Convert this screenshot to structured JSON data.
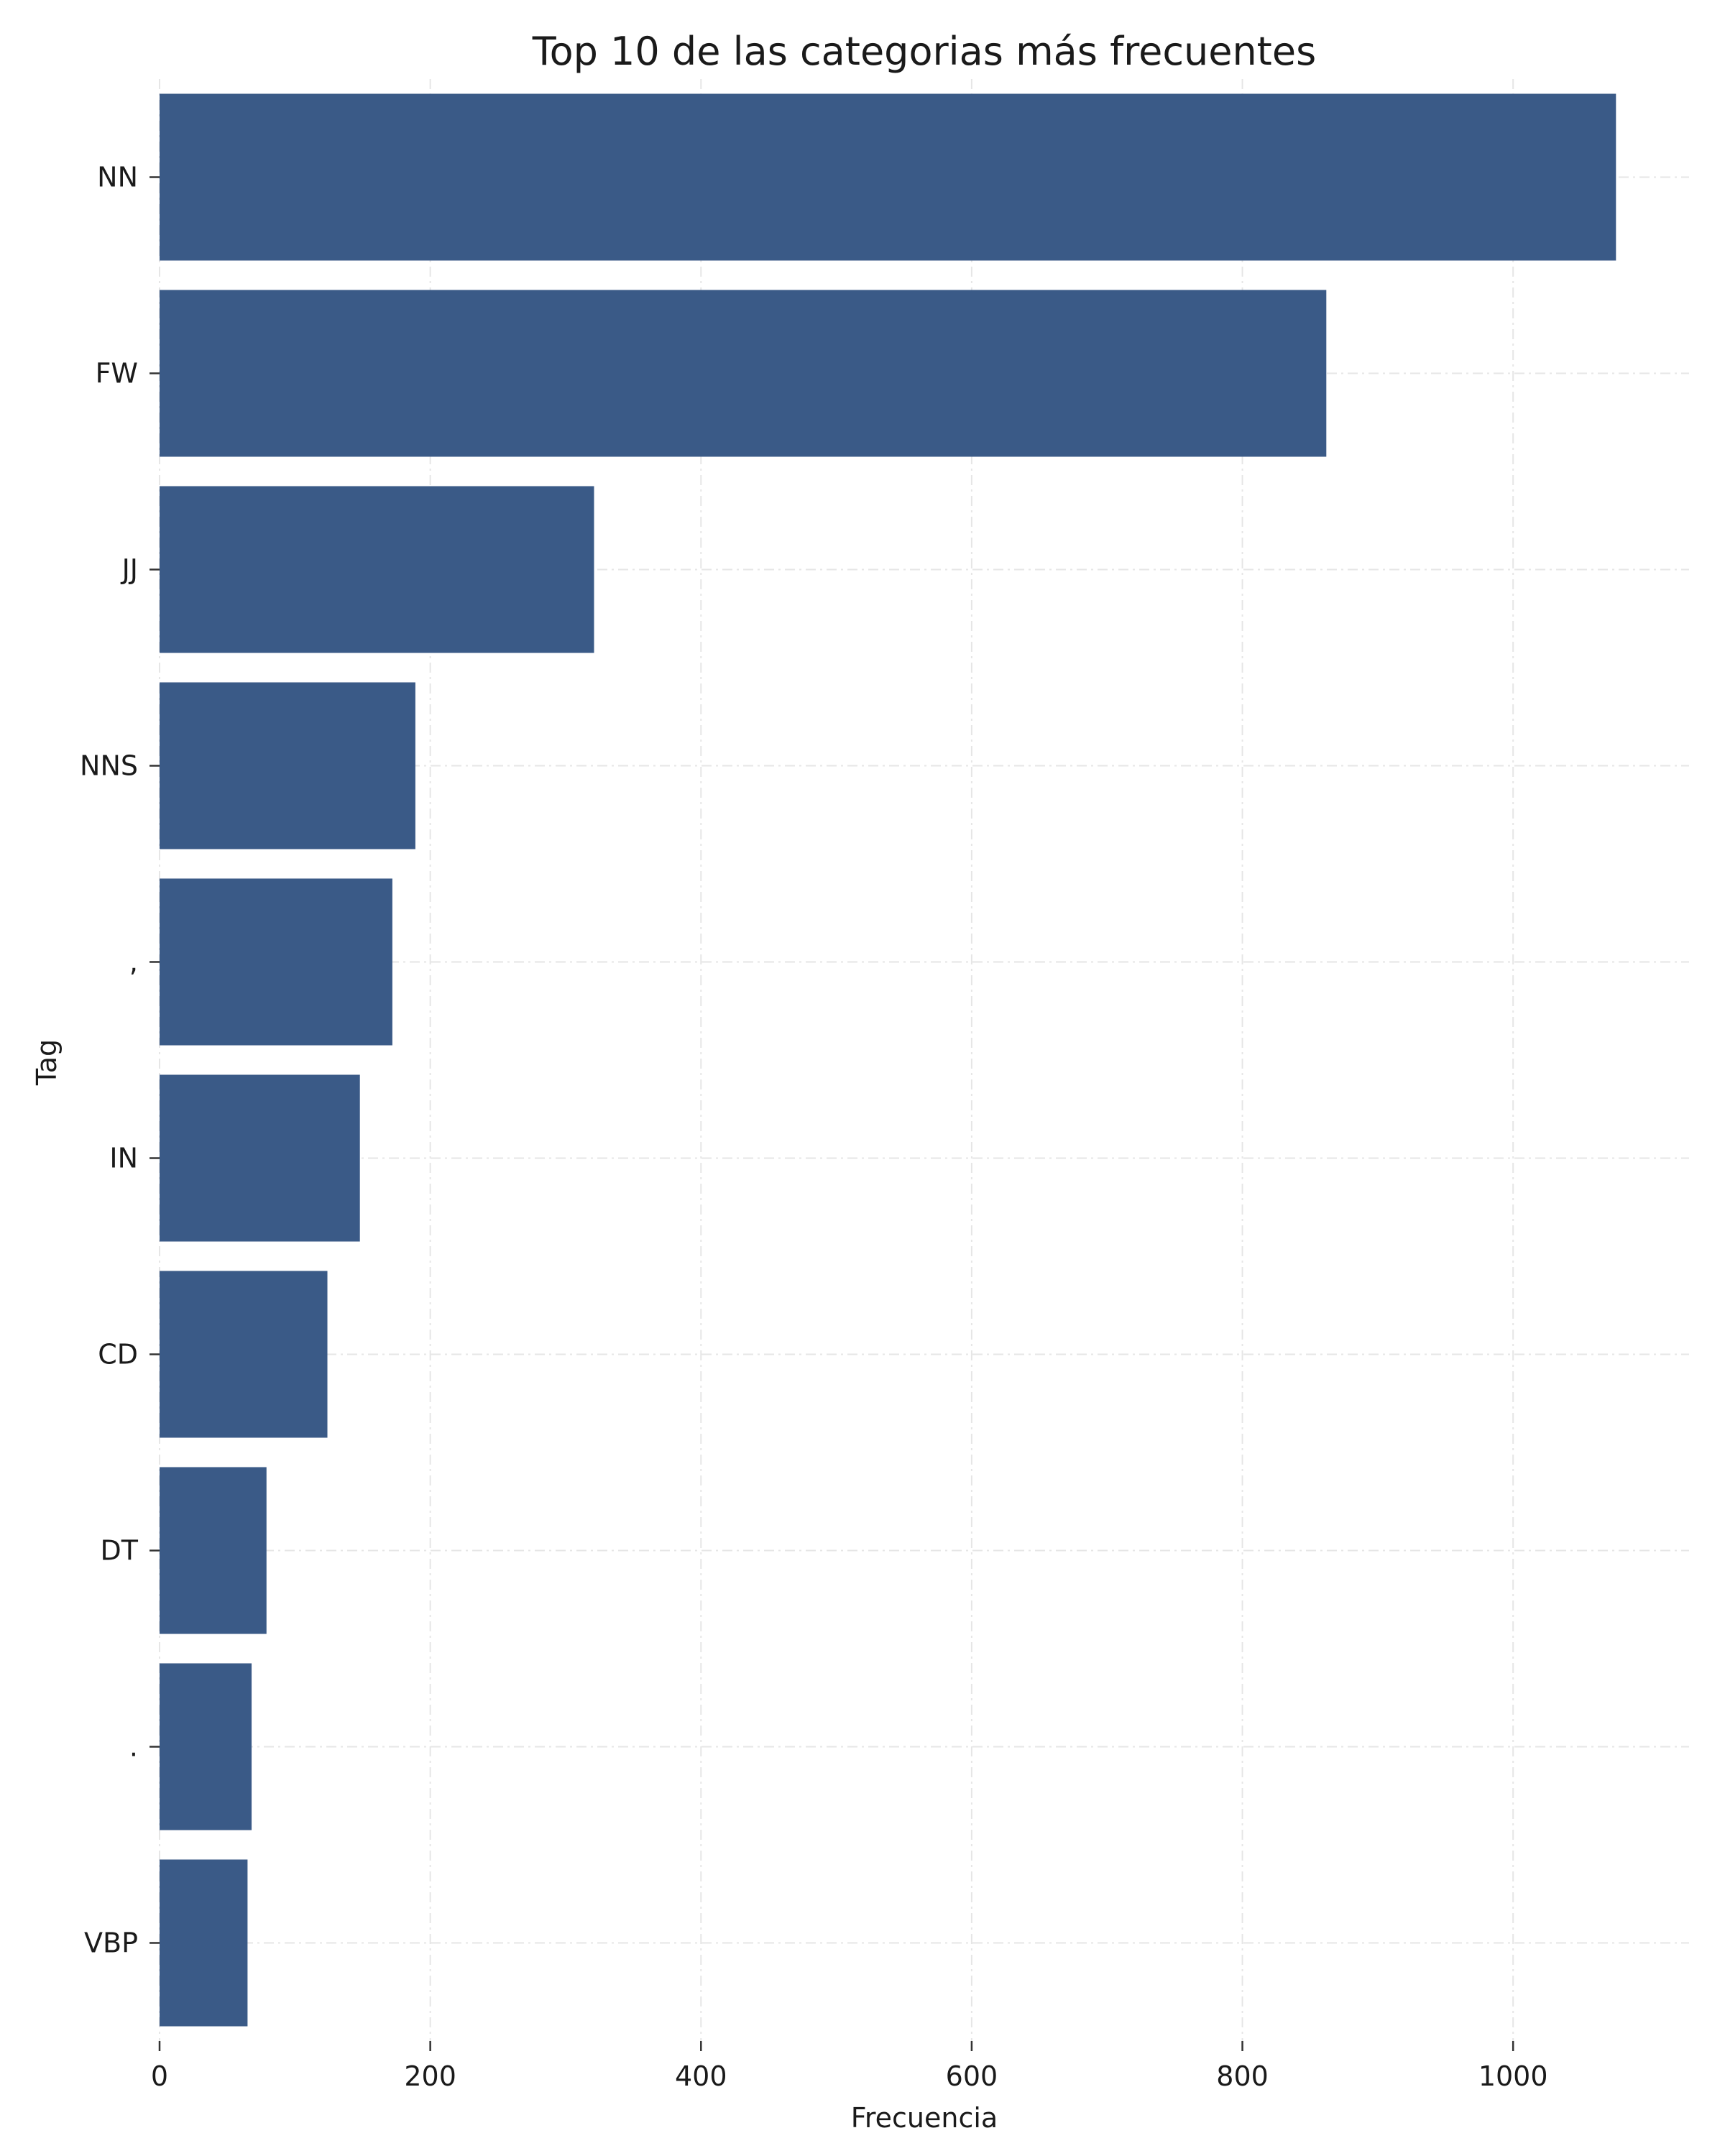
{
  "chart_data": {
    "type": "bar",
    "orientation": "horizontal",
    "title": "Top 10 de las categorias más frecuentes",
    "xlabel": "Frecuencia",
    "ylabel": "Tag",
    "categories": [
      "NN",
      "FW",
      "JJ",
      "NNS",
      ",",
      "IN",
      "CD",
      "DT",
      ".",
      "VBP"
    ],
    "values": [
      1076,
      862,
      321,
      189,
      172,
      148,
      124,
      79,
      68,
      65
    ],
    "xlim": [
      0,
      1130
    ],
    "xticks": [
      0,
      200,
      400,
      600,
      800,
      1000
    ],
    "grid": true,
    "legend": "none",
    "bar_color": "#3a5a87"
  }
}
